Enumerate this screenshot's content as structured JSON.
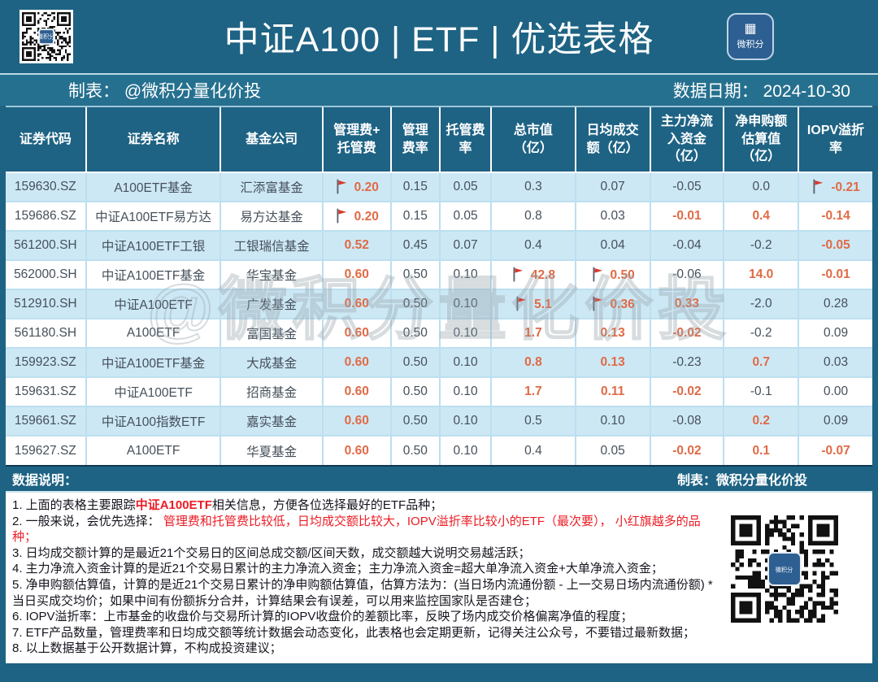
{
  "header": {
    "title": "中证A100 | ETF | 优选表格",
    "logo_text": "微积分",
    "logo_glyph": "▦"
  },
  "subheader": {
    "author": "制表： @微积分量化价投",
    "date": "数据日期： 2024-10-30"
  },
  "watermark": {
    "text": "@微积分量化价投"
  },
  "chart_data": {
    "type": "table",
    "columns": [
      "证券代码",
      "证券名称",
      "基金公司",
      "管理费+\n托管费",
      "管理\n费率",
      "托管费\n率",
      "总市值\n（亿）",
      "日均成交\n额（亿）",
      "主力净流\n入资金\n（亿）",
      "净申购额\n估算值\n（亿）",
      "IOPV溢折\n率"
    ],
    "rows": [
      [
        "159630.SZ",
        "A100ETF基金",
        "汇添富基金",
        {
          "t": "0.20",
          "o": 1,
          "f": 1
        },
        "0.15",
        "0.05",
        "0.3",
        "0.07",
        "-0.05",
        "0.0",
        {
          "t": "-0.21",
          "o": 1,
          "f": 1
        }
      ],
      [
        "159686.SZ",
        "中证A100ETF易方达",
        "易方达基金",
        {
          "t": "0.20",
          "o": 1,
          "f": 1
        },
        "0.15",
        "0.05",
        "0.8",
        "0.03",
        {
          "t": "-0.01",
          "o": 1
        },
        {
          "t": "0.4",
          "o": 1
        },
        {
          "t": "-0.14",
          "o": 1
        }
      ],
      [
        "561200.SH",
        "中证A100ETF工银",
        "工银瑞信基金",
        {
          "t": "0.52",
          "o": 1
        },
        "0.45",
        "0.07",
        "0.4",
        "0.04",
        "-0.04",
        "-0.2",
        {
          "t": "-0.05",
          "o": 1
        }
      ],
      [
        "562000.SH",
        "中证A100ETF基金",
        "华宝基金",
        {
          "t": "0.60",
          "o": 1
        },
        "0.50",
        "0.10",
        {
          "t": "42.8",
          "o": 1,
          "f": 1
        },
        {
          "t": "0.50",
          "o": 1,
          "f": 1
        },
        "-0.06",
        {
          "t": "14.0",
          "o": 1
        },
        {
          "t": "-0.01",
          "o": 1
        }
      ],
      [
        "512910.SH",
        "中证A100ETF",
        "广发基金",
        {
          "t": "0.60",
          "o": 1
        },
        "0.50",
        "0.10",
        {
          "t": "5.1",
          "o": 1,
          "f": 1
        },
        {
          "t": "0.36",
          "o": 1,
          "f": 1
        },
        {
          "t": "0.33",
          "o": 1
        },
        "-2.0",
        "0.28"
      ],
      [
        "561180.SH",
        "A100ETF",
        "富国基金",
        {
          "t": "0.60",
          "o": 1
        },
        "0.50",
        "0.10",
        {
          "t": "1.7",
          "o": 1
        },
        {
          "t": "0.13",
          "o": 1
        },
        {
          "t": "-0.02",
          "o": 1
        },
        "-0.2",
        "0.09"
      ],
      [
        "159923.SZ",
        "中证A100ETF基金",
        "大成基金",
        {
          "t": "0.60",
          "o": 1
        },
        "0.50",
        "0.10",
        {
          "t": "0.8",
          "o": 1
        },
        {
          "t": "0.13",
          "o": 1
        },
        "-0.23",
        {
          "t": "0.7",
          "o": 1
        },
        "0.03"
      ],
      [
        "159631.SZ",
        "中证A100ETF",
        "招商基金",
        {
          "t": "0.60",
          "o": 1
        },
        "0.50",
        "0.10",
        {
          "t": "1.7",
          "o": 1
        },
        {
          "t": "0.11",
          "o": 1
        },
        {
          "t": "-0.02",
          "o": 1
        },
        "-0.1",
        "0.00"
      ],
      [
        "159661.SZ",
        "中证A100指数ETF",
        "嘉实基金",
        {
          "t": "0.60",
          "o": 1
        },
        "0.50",
        "0.10",
        "0.5",
        "0.10",
        "-0.08",
        {
          "t": "0.2",
          "o": 1
        },
        "0.09"
      ],
      [
        "159627.SZ",
        "A100ETF",
        "华夏基金",
        {
          "t": "0.60",
          "o": 1
        },
        "0.50",
        "0.10",
        "0.4",
        "0.05",
        {
          "t": "-0.02",
          "o": 1
        },
        {
          "t": "0.1",
          "o": 1
        },
        {
          "t": "-0.07",
          "o": 1
        }
      ]
    ]
  },
  "footer": {
    "left_label": "数据说明：",
    "right_label": "制表：微积分量化价投",
    "notes": [
      [
        {
          "t": "1. 上面的表格主要跟踪"
        },
        {
          "t": "中证A100ETF",
          "r": 1,
          "b": 1
        },
        {
          "t": "相关信息，方便各位选择最好的ETF品种；"
        }
      ],
      [
        {
          "t": "2. 一般来说，会优先选择： "
        },
        {
          "t": "管理费和托管费比较低，日均成交额比较大，IOPV溢折率比较小的ETF（最次要）， 小红旗越多的品种；",
          "r": 1
        }
      ],
      [
        {
          "t": "3. 日均成交额计算的是最近21个交易日的区间总成交额/区间天数，成交额越大说明交易越活跃；"
        }
      ],
      [
        {
          "t": "4. 主力净流入资金计算的是近21个交易日累计的主力净流入资金；主力净流入资金=超大单净流入资金+大单净流入资金；"
        }
      ],
      [
        {
          "t": "5. 净申购额估算值，计算的是近21个交易日累计的净申购额估算值，估算方法为：(当日场内流通份额 - 上一交易日场内流通份额) * 当日买成交均价；如果中间有份额拆分合并，计算结果会有误差，可以用来监控国家队是否建仓；"
        }
      ],
      [
        {
          "t": "6. IOPV溢折率：上市基金的收盘价与交易所计算的IOPV收盘价的差额比率，反映了场内成交价格偏离净值的程度；"
        }
      ],
      [
        {
          "t": "7. ETF产品数量，管理费率和日均成交额等统计数据会动态变化，此表格也会定期更新，记得关注公众号，不要错过最新数据；"
        }
      ],
      [
        {
          "t": "8. 以上数据基于公开数据计算，不构成投资建议；"
        }
      ]
    ]
  },
  "colors": {
    "header_teal": "#1e6384",
    "subbar_teal": "#26708f",
    "row_blue": "#cde8f5",
    "accent_orange": "#e06a45",
    "note_red": "#ec1c24",
    "flag_red": "#d93a2b"
  }
}
